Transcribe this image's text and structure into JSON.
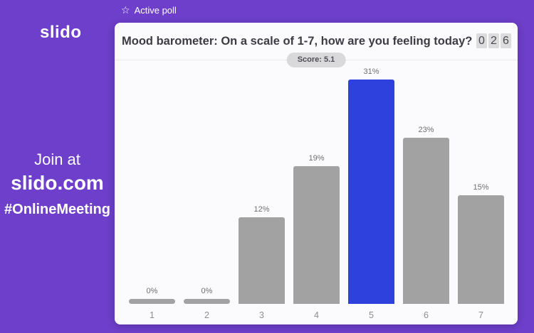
{
  "brand": {
    "logo": "slido"
  },
  "sidebar": {
    "join_line1": "Join at",
    "join_line2": "slido.com",
    "hashtag": "#OnlineMeeting"
  },
  "topbar": {
    "star_icon": "☆",
    "status_label": "Active poll"
  },
  "card": {
    "title": "Mood barometer: On a scale of 1-7, how are you feeling today?",
    "counter_digits": [
      "0",
      "2",
      "6"
    ],
    "score_label": "Score: 5.1"
  },
  "chart_data": {
    "type": "bar",
    "title": "Mood barometer: On a scale of 1-7, how are you feeling today?",
    "categories": [
      "1",
      "2",
      "3",
      "4",
      "5",
      "6",
      "7"
    ],
    "values": [
      0,
      0,
      12,
      19,
      31,
      23,
      15
    ],
    "value_labels": [
      "0%",
      "0%",
      "12%",
      "19%",
      "31%",
      "23%",
      "15%"
    ],
    "unit": "percent",
    "score": 5.1,
    "total_votes": 26,
    "highlight_index": 4,
    "bar_color": "#a2a2a2",
    "highlight_color": "#2e41dc",
    "xlabel": "",
    "ylabel": "",
    "ylim": [
      0,
      35
    ],
    "grid": false,
    "legend": false
  },
  "colors": {
    "background_purple": "#6e3fca",
    "card_background": "#fbfbfd",
    "bar_gray": "#a2a2a2",
    "bar_blue": "#2e41dc",
    "title_text": "#3c3c44",
    "counter_box": "#dcdcdc",
    "score_pill": "#d9d9dc"
  }
}
